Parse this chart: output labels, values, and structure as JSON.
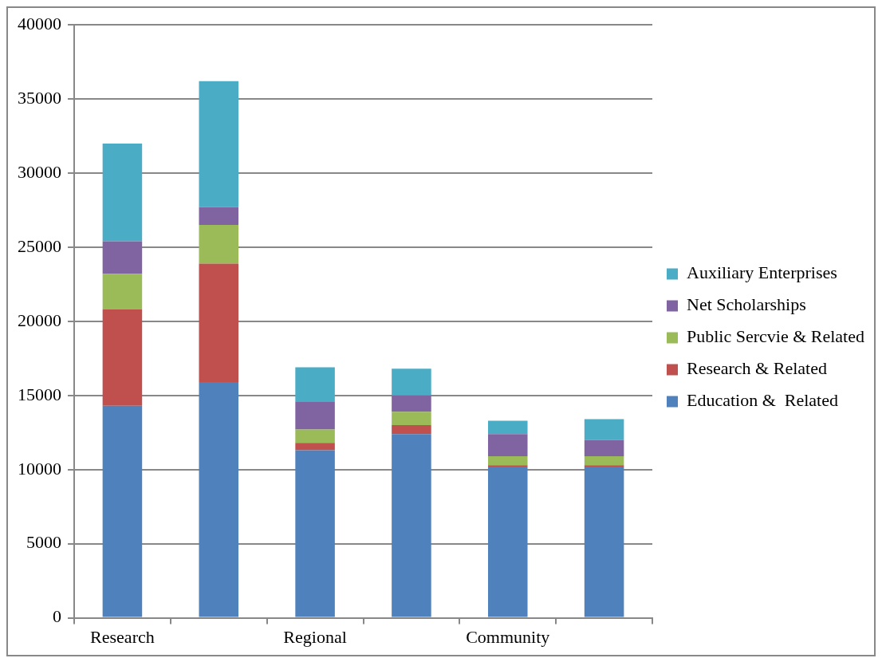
{
  "chart_data": {
    "type": "bar",
    "stacked": true,
    "categories": [
      "Research",
      null,
      "Regional",
      null,
      "Community",
      null
    ],
    "series": [
      {
        "name": "Education &  Related",
        "color": "#4f81bd",
        "values": [
          14300,
          15900,
          11300,
          12400,
          10200,
          10200
        ]
      },
      {
        "name": "Research & Related",
        "color": "#c0504d",
        "values": [
          6500,
          8000,
          500,
          600,
          100,
          100
        ]
      },
      {
        "name": "Public Sercvie & Related",
        "color": "#9bbb59",
        "values": [
          2400,
          2600,
          900,
          900,
          600,
          600
        ]
      },
      {
        "name": "Net Scholarships",
        "color": "#8064a2",
        "values": [
          2200,
          1200,
          1900,
          1100,
          1500,
          1100
        ]
      },
      {
        "name": "Auxiliary Enterprises",
        "color": "#4bacc6",
        "values": [
          6600,
          8500,
          2300,
          1800,
          900,
          1400
        ]
      }
    ],
    "ylim": [
      0,
      40000
    ],
    "yticks": [
      0,
      5000,
      10000,
      15000,
      20000,
      25000,
      30000,
      35000,
      40000
    ],
    "grid": "y",
    "legend": "right"
  }
}
